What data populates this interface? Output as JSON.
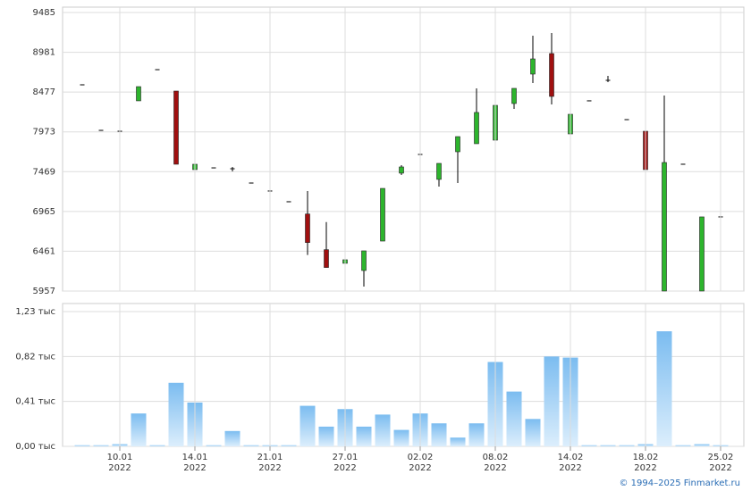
{
  "chart_data": [
    {
      "type": "candlestick",
      "open": [
        8569,
        7992,
        7981,
        8366,
        8761,
        8490,
        7495,
        7517,
        7506,
        7325,
        7224,
        7088,
        6933,
        6481,
        6308,
        6217,
        6590,
        7450,
        7687,
        7371,
        7721,
        7823,
        7868,
        8332,
        8705,
        8965,
        7947,
        8366,
        8626,
        8128,
        7981,
        5957,
        7563,
        5957,
        6896
      ],
      "high": [
        8569,
        7992,
        7981,
        8546,
        8761,
        8490,
        7642,
        7517,
        7529,
        7325,
        7224,
        7088,
        7224,
        6831,
        6375,
        6466,
        7257,
        7551,
        7687,
        7574,
        7913,
        8524,
        8309,
        8524,
        9191,
        9225,
        8275,
        8366,
        8682,
        8128,
        8004,
        8433,
        7563,
        6896,
        6896
      ],
      "low": [
        8569,
        7992,
        7981,
        8366,
        8761,
        7563,
        7337,
        7517,
        7472,
        7325,
        7224,
        7088,
        6413,
        6255,
        6206,
        6014,
        6590,
        7427,
        7472,
        7280,
        7325,
        7823,
        7868,
        8264,
        8592,
        8320,
        7732,
        8366,
        8603,
        8128,
        7280,
        5957,
        7563,
        5957,
        6896
      ],
      "close": [
        8569,
        7992,
        7981,
        8546,
        8761,
        7563,
        7563,
        7517,
        7506,
        7325,
        7224,
        7088,
        6571,
        6255,
        6353,
        6466,
        7257,
        7529,
        7687,
        7574,
        7913,
        8219,
        8309,
        8524,
        8897,
        8422,
        8196,
        8366,
        8626,
        8128,
        7495,
        7585,
        7563,
        6896,
        6896
      ],
      "up_color": "#2db52d",
      "down_color": "#a01010",
      "flat_color": "#000000",
      "ylim": [
        5957,
        9485
      ],
      "yticks": [
        5957,
        6461,
        6965,
        7469,
        7973,
        8477,
        8981,
        9485
      ],
      "grid": true
    },
    {
      "type": "bar",
      "categories": [
        null,
        null,
        "10.01\n2022",
        null,
        null,
        null,
        "14.01\n2022",
        null,
        null,
        null,
        "21.01\n2022",
        null,
        null,
        null,
        "27.01\n2022",
        null,
        null,
        null,
        "02.02\n2022",
        null,
        null,
        null,
        "08.02\n2022",
        null,
        null,
        null,
        "14.02\n2022",
        null,
        null,
        null,
        "18.02\n2022",
        null,
        null,
        null,
        "25.02\n2022"
      ],
      "values": [
        0.01,
        0.01,
        0.02,
        0.3,
        0.01,
        0.58,
        0.4,
        0.01,
        0.14,
        0.01,
        0.01,
        0.01,
        0.37,
        0.18,
        0.34,
        0.18,
        0.29,
        0.15,
        0.3,
        0.21,
        0.08,
        0.21,
        0.77,
        0.5,
        0.25,
        0.82,
        0.81,
        0.01,
        0.01,
        0.01,
        0.02,
        1.05,
        0.01,
        0.02,
        0.01
      ],
      "color": "#7bbcf0",
      "ylim": [
        0,
        1.23
      ],
      "yticks": [
        {
          "value": 0,
          "label": "0,00 тыс"
        },
        {
          "value": 0.41,
          "label": "0,41 тыс"
        },
        {
          "value": 0.82,
          "label": "0,82 тыс"
        },
        {
          "value": 1.23,
          "label": "1,23 тыс"
        }
      ],
      "grid": true
    }
  ],
  "footer": "© 1994–2025 Finmarket.ru"
}
